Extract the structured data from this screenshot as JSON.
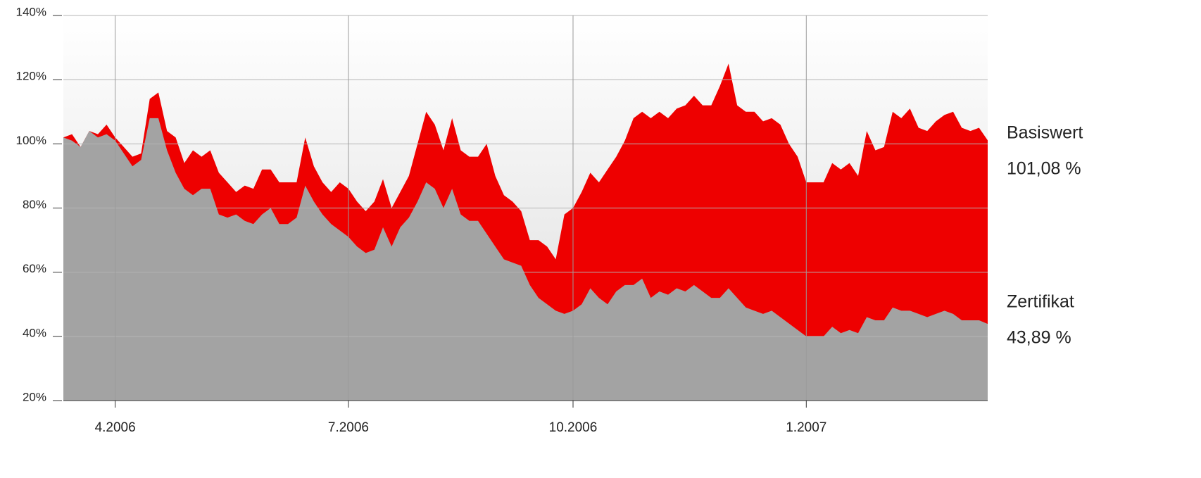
{
  "chart_data": {
    "type": "area",
    "categories": [
      null,
      null,
      null,
      null,
      null,
      null,
      "4.2006",
      null,
      null,
      null,
      null,
      null,
      null,
      null,
      null,
      null,
      null,
      null,
      null,
      null,
      null,
      null,
      null,
      null,
      null,
      null,
      null,
      null,
      null,
      null,
      null,
      null,
      null,
      "7.2006",
      null,
      null,
      null,
      null,
      null,
      null,
      null,
      null,
      null,
      null,
      null,
      null,
      null,
      null,
      null,
      null,
      null,
      null,
      null,
      null,
      null,
      null,
      null,
      null,
      null,
      "10.2006",
      null,
      null,
      null,
      null,
      null,
      null,
      null,
      null,
      null,
      null,
      null,
      null,
      null,
      null,
      null,
      null,
      null,
      null,
      null,
      null,
      null,
      null,
      null,
      null,
      null,
      null,
      "1.2007",
      null,
      null,
      null,
      null,
      null,
      null,
      null,
      null,
      null,
      null,
      null,
      null,
      null,
      null,
      null,
      null,
      null,
      null,
      null,
      null,
      null
    ],
    "series": [
      {
        "name": "Basiswert",
        "color": "#ee0000",
        "values": [
          102,
          103,
          99,
          104,
          103,
          106,
          102,
          99,
          96,
          97,
          114,
          116,
          104,
          102,
          94,
          98,
          96,
          98,
          91,
          88,
          85,
          87,
          86,
          92,
          92,
          88,
          88,
          88,
          102,
          93,
          88,
          85,
          88,
          86,
          82,
          79,
          82,
          89,
          80,
          85,
          90,
          100,
          110,
          106,
          98,
          108,
          98,
          96,
          96,
          100,
          90,
          84,
          82,
          79,
          70,
          70,
          68,
          64,
          78,
          80,
          85,
          91,
          88,
          92,
          96,
          101,
          108,
          110,
          108,
          110,
          108,
          111,
          112,
          115,
          112,
          112,
          118,
          125,
          112,
          110,
          110,
          107,
          108,
          106,
          100,
          96,
          88,
          88,
          88,
          94,
          92,
          94,
          90,
          104,
          98,
          99,
          110,
          108,
          111,
          105,
          104,
          107,
          109,
          110,
          105,
          104,
          105,
          101.08
        ],
        "value_labels": [
          null,
          null,
          null,
          null,
          null,
          null,
          null,
          null,
          null,
          null,
          null,
          null,
          null,
          null,
          null,
          null,
          null,
          null,
          null,
          null,
          null,
          null,
          null,
          null,
          null,
          null,
          null,
          null,
          null,
          null,
          null,
          null,
          null,
          null,
          null,
          null,
          null,
          null,
          null,
          null,
          null,
          null,
          null,
          null,
          null,
          null,
          null,
          null,
          null,
          null,
          null,
          null,
          null,
          null,
          null,
          null,
          null,
          null,
          null,
          null,
          null,
          null,
          null,
          null,
          null,
          null,
          null,
          null,
          null,
          null,
          null,
          null,
          null,
          null,
          null,
          null,
          null,
          null,
          null,
          null,
          null,
          null,
          null,
          null,
          null,
          null,
          null,
          null,
          null,
          null,
          null,
          null,
          null,
          null,
          null,
          null,
          null,
          null,
          null,
          null,
          null,
          null,
          null,
          null,
          null,
          null,
          null,
          "101,08 %"
        ]
      },
      {
        "name": "Zertifikat",
        "color": "#a3a3a3",
        "values": [
          102,
          101,
          99,
          104,
          102,
          103,
          101,
          97,
          93,
          95,
          108,
          108,
          98,
          91,
          86,
          84,
          86,
          86,
          78,
          77,
          78,
          76,
          75,
          78,
          80,
          75,
          75,
          77,
          87,
          82,
          78,
          75,
          73,
          71,
          68,
          66,
          67,
          74,
          68,
          74,
          77,
          82,
          88,
          86,
          80,
          86,
          78,
          76,
          76,
          72,
          68,
          64,
          63,
          62,
          56,
          52,
          50,
          48,
          47,
          48,
          50,
          55,
          52,
          50,
          54,
          56,
          56,
          58,
          52,
          54,
          53,
          55,
          54,
          56,
          54,
          52,
          52,
          55,
          52,
          49,
          48,
          47,
          48,
          46,
          44,
          42,
          40,
          40,
          40,
          43,
          41,
          42,
          41,
          46,
          45,
          45,
          49,
          48,
          48,
          47,
          46,
          47,
          48,
          47,
          45,
          45,
          45,
          43.89
        ],
        "value_labels": [
          null,
          null,
          null,
          null,
          null,
          null,
          null,
          null,
          null,
          null,
          null,
          null,
          null,
          null,
          null,
          null,
          null,
          null,
          null,
          null,
          null,
          null,
          null,
          null,
          null,
          null,
          null,
          null,
          null,
          null,
          null,
          null,
          null,
          null,
          null,
          null,
          null,
          null,
          null,
          null,
          null,
          null,
          null,
          null,
          null,
          null,
          null,
          null,
          null,
          null,
          null,
          null,
          null,
          null,
          null,
          null,
          null,
          null,
          null,
          null,
          null,
          null,
          null,
          null,
          null,
          null,
          null,
          null,
          null,
          null,
          null,
          null,
          null,
          null,
          null,
          null,
          null,
          null,
          null,
          null,
          null,
          null,
          null,
          null,
          null,
          null,
          null,
          null,
          null,
          null,
          null,
          null,
          null,
          null,
          null,
          null,
          null,
          null,
          null,
          null,
          null,
          null,
          null,
          null,
          null,
          null,
          null,
          "43,89 %"
        ]
      }
    ],
    "ylim": [
      20,
      140
    ],
    "yticks": [
      {
        "value": 20,
        "label": "20%"
      },
      {
        "value": 40,
        "label": "40%"
      },
      {
        "value": 60,
        "label": "60%"
      },
      {
        "value": 80,
        "label": "80%"
      },
      {
        "value": 100,
        "label": "100%"
      },
      {
        "value": 120,
        "label": "120%"
      },
      {
        "value": 140,
        "label": "140%"
      }
    ],
    "grid": true
  }
}
